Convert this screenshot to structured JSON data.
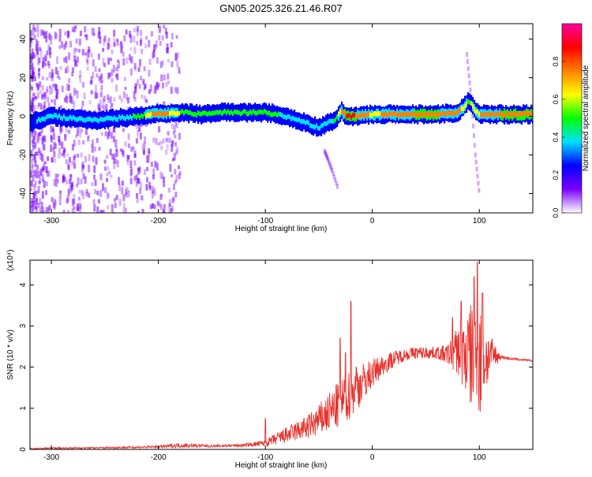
{
  "title": "GN05.2025.326.21.46.R07",
  "colors": {
    "snr_line": "#e8302b",
    "axes": "#000000"
  },
  "chart_data": [
    {
      "type": "heatmap",
      "xlabel": "Height of straight line (km)",
      "ylabel": "Frequency (Hz)",
      "xlim": [
        -320,
        150
      ],
      "ylim": [
        -50,
        48
      ],
      "x_ticks": [
        -300,
        -200,
        -100,
        0,
        100
      ],
      "y_ticks": [
        -40,
        -20,
        0,
        20,
        40
      ],
      "colorbar": {
        "label": "Normalized spectral amplitude",
        "range": [
          0,
          1
        ],
        "ticks": [
          0.0,
          0.2,
          0.4,
          0.6,
          0.8
        ],
        "colors": [
          "#ffffff",
          "#7a00ff",
          "#0000ff",
          "#00e0ff",
          "#00ff00",
          "#ffff00",
          "#ff8000",
          "#ff0000",
          "#ff00a0"
        ]
      },
      "ridge": {
        "x": [
          -320,
          -300,
          -280,
          -260,
          -240,
          -220,
          -200,
          -180,
          -160,
          -140,
          -120,
          -100,
          -90,
          -80,
          -70,
          -60,
          -50,
          -45,
          -40,
          -35,
          -30,
          -25,
          -20,
          0,
          20,
          40,
          60,
          80,
          85,
          90,
          95,
          100,
          120,
          150
        ],
        "y": [
          -3,
          0,
          -1,
          -2,
          -1,
          0,
          1.5,
          2,
          1,
          2,
          2,
          2,
          1,
          0,
          -2,
          -4,
          -6,
          -4,
          -3,
          -2,
          3,
          0,
          0,
          1,
          1,
          1,
          1,
          2,
          5,
          8,
          3,
          1,
          1,
          1
        ],
        "amplitude": [
          0.3,
          0.35,
          0.4,
          0.35,
          0.4,
          0.45,
          0.8,
          0.55,
          0.5,
          0.5,
          0.5,
          0.55,
          0.45,
          0.4,
          0.4,
          0.4,
          0.35,
          0.35,
          0.4,
          0.5,
          0.7,
          0.85,
          0.85,
          0.65,
          0.75,
          0.8,
          0.8,
          0.75,
          0.6,
          0.55,
          0.6,
          0.7,
          0.8,
          0.8
        ]
      },
      "branches": [
        {
          "x": [
            -45,
            -42,
            -38,
            -32
          ],
          "y": [
            -18,
            -22,
            -28,
            -38
          ]
        },
        {
          "x": [
            88,
            92,
            96,
            100
          ],
          "y": [
            32,
            10,
            -20,
            -42
          ]
        }
      ]
    },
    {
      "type": "line",
      "xlabel": "Height of straight line (km)",
      "ylabel": "SNR (10 * v/v)",
      "scale_label": "(x10⁴)",
      "xlim": [
        -320,
        150
      ],
      "ylim": [
        0,
        4.6
      ],
      "x_ticks": [
        -300,
        -200,
        -100,
        0,
        100
      ],
      "y_ticks": [
        0,
        1,
        2,
        3,
        4
      ],
      "series": [
        {
          "x": [
            -320,
            -300,
            -250,
            -200,
            -180,
            -150,
            -120,
            -100,
            -90,
            -80,
            -70,
            -60,
            -50,
            -40,
            -30,
            -20,
            -10,
            0,
            10,
            20,
            30,
            40,
            50,
            60,
            70,
            80,
            85,
            90,
            95,
            100,
            105,
            110,
            120,
            130,
            140,
            150
          ],
          "y": [
            0.02,
            0.03,
            0.04,
            0.06,
            0.1,
            0.08,
            0.1,
            0.15,
            0.25,
            0.35,
            0.45,
            0.55,
            0.7,
            0.9,
            1.1,
            1.35,
            1.6,
            1.85,
            2.05,
            2.2,
            2.3,
            2.35,
            2.35,
            2.35,
            2.3,
            2.4,
            2.3,
            2.3,
            2.2,
            2.2,
            2.2,
            2.3,
            2.25,
            2.2,
            2.18,
            2.15
          ],
          "noise": [
            0.01,
            0.02,
            0.02,
            0.03,
            0.06,
            0.03,
            0.04,
            0.08,
            0.15,
            0.2,
            0.25,
            0.3,
            0.4,
            0.5,
            0.6,
            0.6,
            0.5,
            0.35,
            0.25,
            0.2,
            0.15,
            0.15,
            0.15,
            0.15,
            0.25,
            0.6,
            0.9,
            1.2,
            1.4,
            1.6,
            1.0,
            0.5,
            0.05,
            0.03,
            0.03,
            0.02
          ]
        }
      ],
      "peaks": [
        {
          "x": -100,
          "y": 0.75
        },
        {
          "x": -30,
          "y": 2.7
        },
        {
          "x": -25,
          "y": 2.35
        },
        {
          "x": -20,
          "y": 3.6
        },
        {
          "x": -15,
          "y": 2.0
        },
        {
          "x": 75,
          "y": 3.2
        },
        {
          "x": 83,
          "y": 3.6
        },
        {
          "x": 95,
          "y": 4.2
        },
        {
          "x": 98,
          "y": 4.55
        },
        {
          "x": 103,
          "y": 3.8
        }
      ]
    }
  ]
}
